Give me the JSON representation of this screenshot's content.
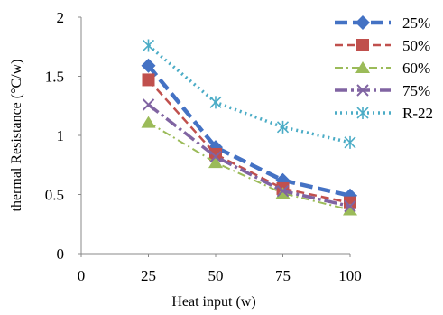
{
  "chart_data": {
    "type": "line",
    "title": "",
    "xlabel": "Heat input (w)",
    "ylabel": "thermal Resistance (°C/w)",
    "xlim": [
      0,
      100
    ],
    "ylim": [
      0,
      2
    ],
    "x_ticks": [
      "0",
      "25",
      "50",
      "75",
      "100"
    ],
    "y_ticks": [
      "0",
      "0.5",
      "1",
      "1.5",
      "2"
    ],
    "x": [
      25,
      50,
      75,
      100
    ],
    "grid": false,
    "legend_position": "right",
    "series": [
      {
        "name": "25%",
        "values": [
          1.59,
          0.9,
          0.62,
          0.49
        ],
        "color": "#4472C4",
        "marker": "diamond",
        "dash": "long-dash"
      },
      {
        "name": "50%",
        "values": [
          1.47,
          0.84,
          0.55,
          0.43
        ],
        "color": "#C0504D",
        "marker": "square",
        "dash": "dash"
      },
      {
        "name": "60%",
        "values": [
          1.11,
          0.77,
          0.51,
          0.37
        ],
        "color": "#9BBB59",
        "marker": "triangle",
        "dash": "dash-dot"
      },
      {
        "name": "75%",
        "values": [
          1.26,
          0.82,
          0.53,
          0.4
        ],
        "color": "#8064A2",
        "marker": "x",
        "dash": "long-dash-dot"
      },
      {
        "name": "R-22",
        "values": [
          1.76,
          1.28,
          1.07,
          0.94
        ],
        "color": "#4BACC6",
        "marker": "star",
        "dash": "dot"
      }
    ]
  }
}
